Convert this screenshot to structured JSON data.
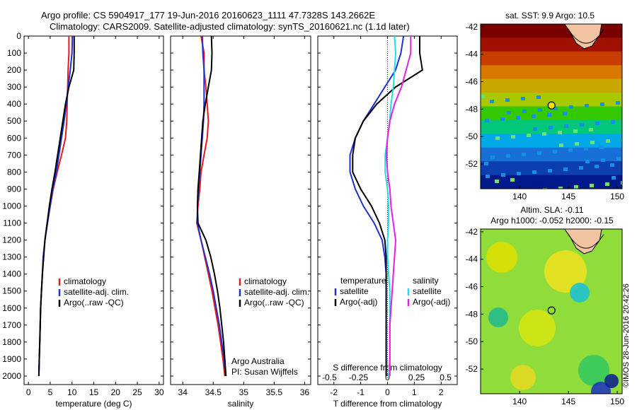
{
  "header": {
    "line1": "Argo profile: CS 5904917_177 19-Jun-2016 20160623_1111 47.7328S 143.2662E",
    "line2": "Climatology: CARS2009. Satellite-adjusted climatology: synTS_20160621.nc (1.1d later)"
  },
  "credit": "©IMOS 28-Jun-2016 20:42:26",
  "colors": {
    "climatology": "#e41a1c",
    "satellite": "#1f2fd6",
    "argo": "#000000",
    "s_satellite": "#22dde6",
    "s_argo": "#e81ee8",
    "land": "#f2c4a2"
  },
  "legend_profiles": [
    {
      "label": "climatology",
      "color": "#e41a1c"
    },
    {
      "label": "satellite-adj. clim.",
      "color": "#1f2fd6"
    },
    {
      "label": "Argo(..raw -QC)",
      "color": "#000000"
    }
  ],
  "legend_diff": {
    "temperature_title": "temperature",
    "salinity_title": "salinity",
    "temperature": [
      {
        "label": "satellite",
        "color": "#1f2fd6"
      },
      {
        "label": "Argo(-adj)",
        "color": "#000000"
      }
    ],
    "salinity": [
      {
        "label": "satellite",
        "color": "#22dde6"
      },
      {
        "label": "Argo(-adj)",
        "color": "#e81ee8"
      }
    ]
  },
  "annotation": [
    "Argo Australia",
    "PI: Susan Wijffels"
  ],
  "map_sst": {
    "title": "sat. SST: 9.9 Argo: 10.5"
  },
  "map_sla": {
    "title_lines": [
      "Altim. SLA: -0.11",
      "Argo h1000: -0.052 h2000: -0.15"
    ]
  },
  "chart_data": [
    {
      "type": "line",
      "xlabel": "temperature (deg C)",
      "ylabel": "",
      "xlim": [
        -1,
        31
      ],
      "ylim": [
        2050,
        0
      ],
      "xticks": [
        0,
        5,
        10,
        15,
        20,
        25,
        30
      ],
      "yticks": [
        0,
        100,
        200,
        300,
        400,
        500,
        600,
        700,
        800,
        900,
        1000,
        1100,
        1200,
        1300,
        1400,
        1500,
        1600,
        1700,
        1800,
        1900,
        2000
      ],
      "series": [
        {
          "name": "climatology",
          "color": "#e41a1c",
          "x": [
            9.3,
            9.3,
            9.1,
            9.0,
            8.9,
            8.8,
            8.5,
            7.6,
            6.6,
            5.7,
            5.0,
            4.3,
            3.8,
            3.4,
            3.2,
            3.0,
            2.8,
            2.7,
            2.6,
            2.5,
            2.4
          ],
          "y": [
            0,
            100,
            200,
            300,
            400,
            500,
            600,
            700,
            800,
            900,
            1000,
            1100,
            1200,
            1300,
            1400,
            1500,
            1600,
            1700,
            1800,
            1900,
            2000
          ]
        },
        {
          "name": "satellite-adj. clim.",
          "color": "#1f2fd6",
          "x": [
            10.1,
            10.0,
            9.6,
            9.1,
            8.7,
            8.2,
            7.6,
            7.0,
            6.4,
            5.6,
            5.0,
            4.4,
            3.8,
            3.4,
            3.2,
            3.0,
            2.8,
            2.7,
            2.6,
            2.5,
            2.4
          ],
          "y": [
            0,
            100,
            200,
            300,
            400,
            500,
            600,
            700,
            800,
            900,
            1000,
            1100,
            1200,
            1300,
            1400,
            1500,
            1600,
            1700,
            1800,
            1900,
            2000
          ]
        },
        {
          "name": "Argo(..raw -QC)",
          "color": "#000000",
          "x": [
            10.5,
            10.5,
            10.4,
            9.3,
            8.5,
            7.9,
            7.3,
            6.7,
            6.1,
            5.4,
            4.8,
            4.3,
            3.8,
            3.5,
            3.2,
            3.0,
            2.8,
            2.7,
            2.6,
            2.5,
            2.4
          ],
          "y": [
            0,
            100,
            200,
            300,
            400,
            500,
            600,
            700,
            800,
            900,
            1000,
            1100,
            1200,
            1300,
            1400,
            1500,
            1600,
            1700,
            1800,
            1900,
            2000
          ]
        }
      ]
    },
    {
      "type": "line",
      "xlabel": "salinity",
      "ylabel": "",
      "xlim": [
        33.8,
        36.1
      ],
      "ylim": [
        2050,
        0
      ],
      "xticks": [
        34,
        34.5,
        35,
        35.5,
        36
      ],
      "series": [
        {
          "name": "climatology",
          "color": "#e41a1c",
          "x": [
            34.3,
            34.35,
            34.35,
            34.38,
            34.4,
            34.42,
            34.4,
            34.35,
            34.3,
            34.28,
            34.25,
            34.23,
            34.3,
            34.36,
            34.42,
            34.48,
            34.53,
            34.58,
            34.62,
            34.66,
            34.69
          ],
          "y": [
            0,
            100,
            200,
            300,
            400,
            500,
            600,
            700,
            800,
            900,
            1000,
            1100,
            1200,
            1300,
            1400,
            1500,
            1600,
            1700,
            1800,
            1900,
            2000
          ]
        },
        {
          "name": "satellite-adj. clim.",
          "color": "#1f2fd6",
          "x": [
            34.32,
            34.33,
            34.35,
            34.35,
            34.35,
            34.34,
            34.32,
            34.3,
            34.28,
            34.26,
            34.24,
            34.24,
            34.3,
            34.37,
            34.44,
            34.5,
            34.55,
            34.6,
            34.64,
            34.68,
            34.7
          ],
          "y": [
            0,
            100,
            200,
            300,
            400,
            500,
            600,
            700,
            800,
            900,
            1000,
            1100,
            1200,
            1300,
            1400,
            1500,
            1600,
            1700,
            1800,
            1900,
            2000
          ]
        },
        {
          "name": "Argo(..raw -QC)",
          "color": "#000000",
          "x": [
            34.47,
            34.48,
            34.47,
            34.42,
            34.37,
            34.33,
            34.31,
            34.29,
            34.27,
            34.25,
            34.24,
            34.25,
            34.38,
            34.46,
            34.52,
            34.57,
            34.61,
            34.64,
            34.67,
            34.69,
            34.71
          ],
          "y": [
            0,
            100,
            200,
            300,
            400,
            500,
            600,
            700,
            800,
            900,
            1000,
            1100,
            1200,
            1300,
            1400,
            1500,
            1600,
            1700,
            1800,
            1900,
            2000
          ]
        }
      ]
    },
    {
      "type": "line",
      "xlabel": "T difference from climatology",
      "x2label": "S difference from climatology",
      "ylabel": "",
      "xlim": [
        -2.6,
        2.6
      ],
      "ylim": [
        2050,
        0
      ],
      "xticks": [
        -2,
        -1,
        0,
        1,
        2
      ],
      "x2ticks": [
        -0.5,
        -0.25,
        0,
        0.25,
        0.5
      ],
      "x2ticklabels": [
        "-0.5",
        "-0.25",
        "0",
        "0.25",
        "0.5"
      ],
      "series": [
        {
          "name": "temperature satellite",
          "color": "#1f2fd6",
          "x": [
            0.6,
            0.5,
            0.3,
            -0.1,
            -0.5,
            -0.9,
            -1.2,
            -1.4,
            -1.4,
            -1.2,
            -0.9,
            -0.5,
            -0.2,
            -0.1,
            -0.05,
            -0.05,
            -0.05,
            -0.05,
            -0.05,
            -0.05,
            -0.05
          ],
          "y": [
            0,
            100,
            200,
            300,
            400,
            500,
            600,
            700,
            800,
            900,
            1000,
            1100,
            1200,
            1300,
            1400,
            1500,
            1600,
            1700,
            1800,
            1900,
            2000
          ]
        },
        {
          "name": "temperature Argo(-adj)",
          "color": "#000000",
          "x": [
            1.2,
            1.2,
            1.3,
            0.3,
            -0.4,
            -0.9,
            -1.2,
            -1.3,
            -1.3,
            -1.0,
            -0.6,
            -0.3,
            -0.1,
            -0.05,
            -0.05,
            -0.05,
            -0.05,
            -0.05,
            -0.05,
            -0.05,
            -0.05
          ],
          "y": [
            0,
            100,
            200,
            300,
            400,
            500,
            600,
            700,
            800,
            900,
            1000,
            1100,
            1200,
            1300,
            1400,
            1500,
            1600,
            1700,
            1800,
            1900,
            2000
          ]
        },
        {
          "name": "salinity satellite",
          "color": "#22dde6",
          "x": [
            0.06,
            0.07,
            0.06,
            0.05,
            0.03,
            0.02,
            0.0,
            -0.02,
            -0.02,
            0.0,
            0.01,
            0.01,
            0.0,
            0.0,
            0.01,
            0.02,
            0.02,
            0.02,
            0.02,
            0.02,
            0.01
          ],
          "y": [
            0,
            100,
            200,
            300,
            400,
            500,
            600,
            700,
            800,
            900,
            1000,
            1100,
            1200,
            1300,
            1400,
            1500,
            1600,
            1700,
            1800,
            1900,
            2000
          ]
        },
        {
          "name": "salinity Argo(-adj)",
          "color": "#e81ee8",
          "x": [
            0.2,
            0.2,
            0.16,
            0.12,
            0.06,
            0.02,
            0.0,
            -0.01,
            0.0,
            0.02,
            0.03,
            0.05,
            0.07,
            0.06,
            0.05,
            0.04,
            0.03,
            0.02,
            0.02,
            0.02,
            0.02
          ],
          "y": [
            0,
            100,
            200,
            300,
            400,
            500,
            600,
            700,
            800,
            900,
            1000,
            1100,
            1200,
            1300,
            1400,
            1500,
            1600,
            1700,
            1800,
            1900,
            2000
          ]
        }
      ]
    },
    {
      "type": "heatmap",
      "title": "sat. SST: 9.9 Argo: 10.5",
      "xlim": [
        136,
        150.5
      ],
      "ylim": [
        -53.8,
        -41.8
      ],
      "xticks": [
        140,
        145,
        150
      ],
      "yticks": [
        -42,
        -44,
        -46,
        -48,
        -50,
        -52
      ],
      "argo_position": {
        "lon": 143.27,
        "lat": -47.73
      }
    },
    {
      "type": "heatmap",
      "title": "Altim. SLA: -0.11",
      "subtitle": "Argo h1000: -0.052 h2000: -0.15",
      "xlim": [
        136,
        150.5
      ],
      "ylim": [
        -53.8,
        -41.8
      ],
      "xticks": [
        140,
        145,
        150
      ],
      "yticks": [
        -42,
        -44,
        -46,
        -48,
        -50,
        -52
      ],
      "argo_position": {
        "lon": 143.27,
        "lat": -47.73
      }
    }
  ]
}
